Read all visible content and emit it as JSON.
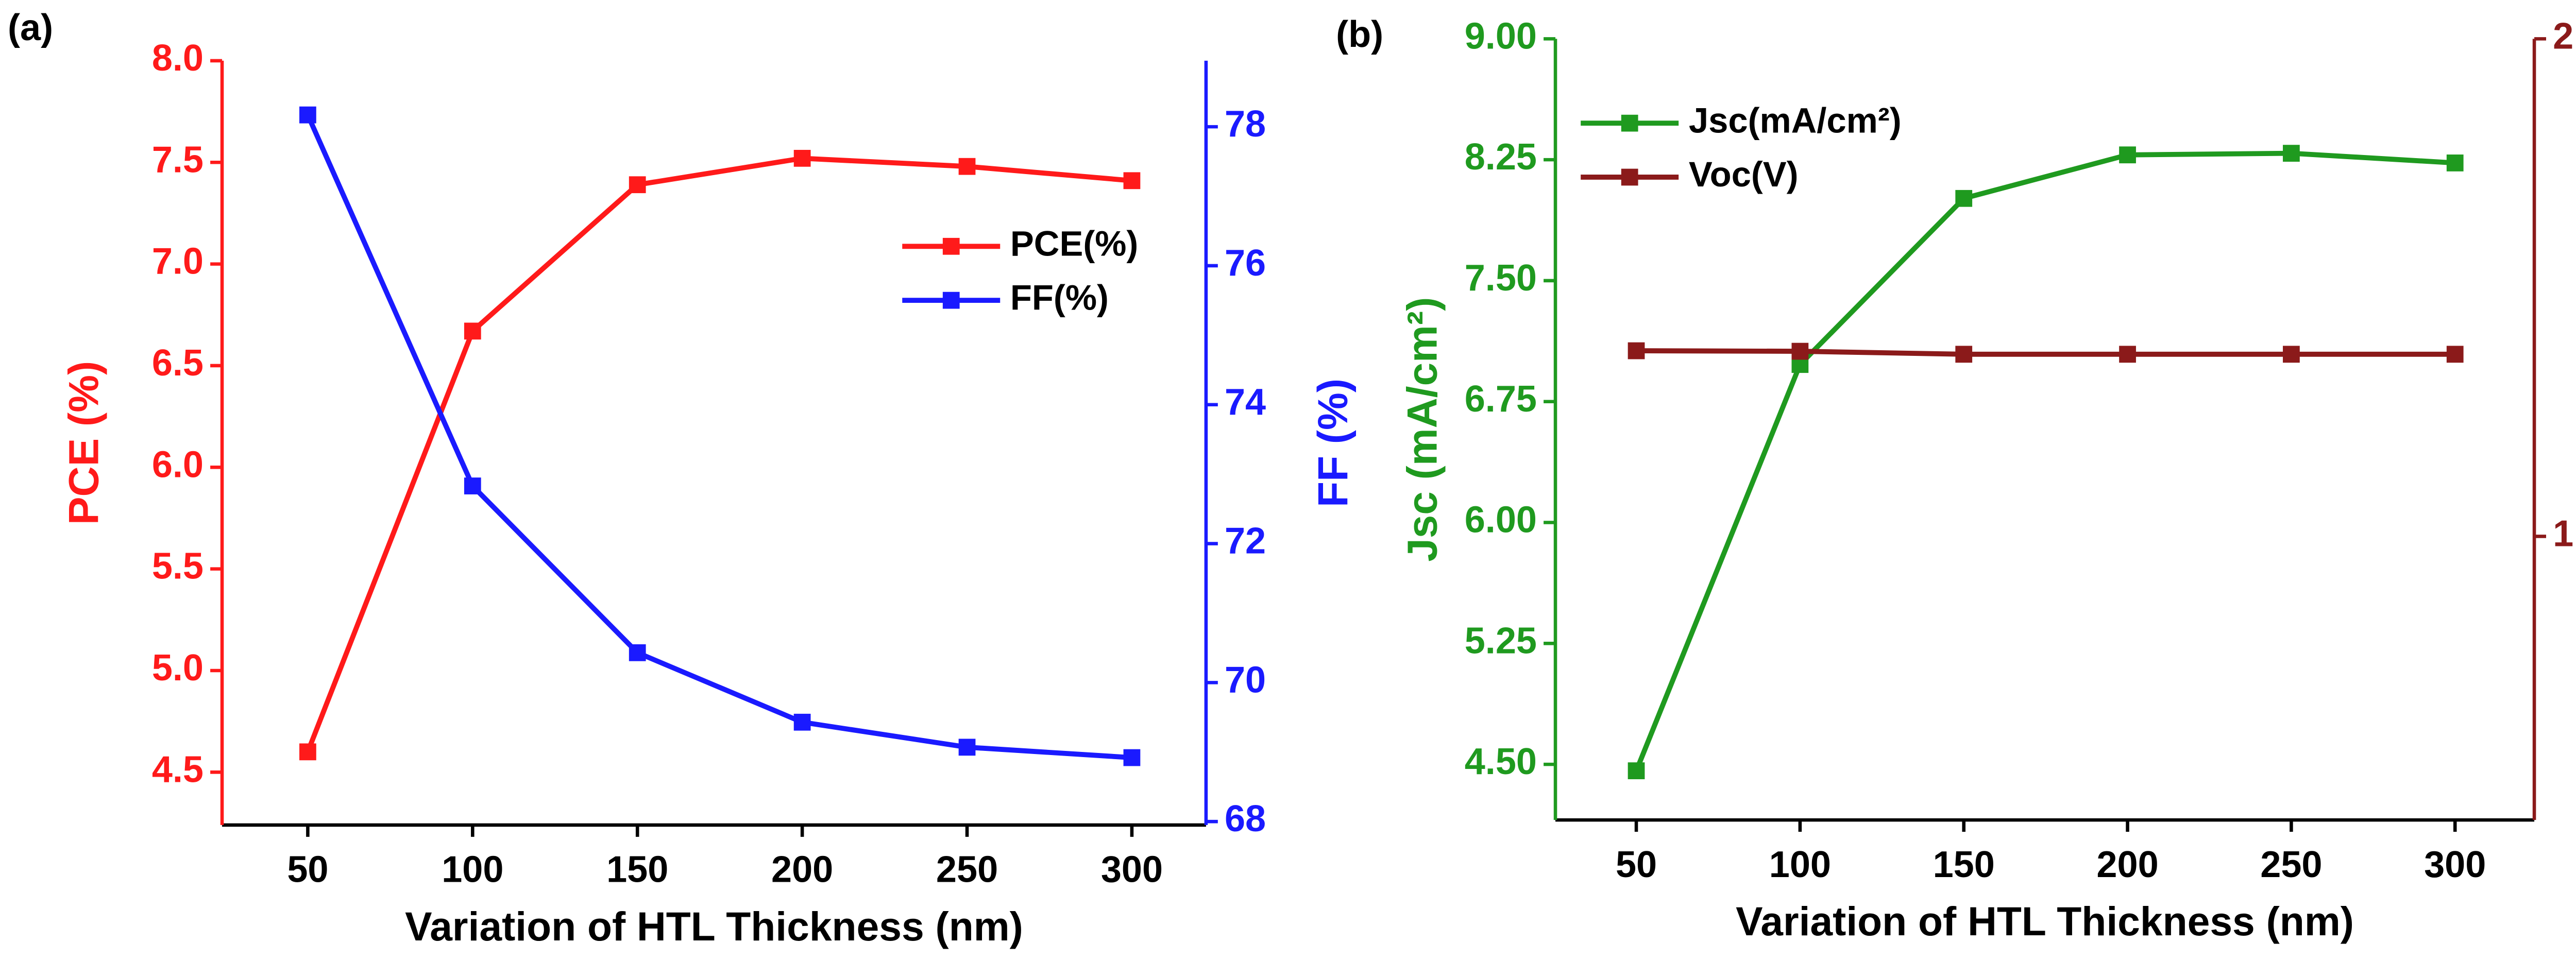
{
  "chart_data": [
    {
      "type": "line",
      "panel_label": "(a)",
      "x_label": "Variation of HTL Thickness (nm)",
      "y_label": "PCE (%)",
      "y2_label": "FF (%)",
      "x": [
        50,
        100,
        150,
        200,
        250,
        300
      ],
      "xlim": [
        24,
        322.5
      ],
      "xticks": [
        50,
        100,
        150,
        200,
        250,
        300
      ],
      "ylim": [
        4.24,
        8.0
      ],
      "yticks": [
        4.5,
        {
          "value": 5,
          "label": "5.0"
        },
        5.5,
        {
          "value": 6,
          "label": "6.0"
        },
        6.5,
        {
          "value": 7,
          "label": "7.0"
        },
        7.5,
        {
          "value": 8,
          "label": "8.0"
        }
      ],
      "y2lim": [
        67.95,
        78.95
      ],
      "y2ticks": [
        68,
        70,
        72,
        74,
        76,
        78
      ],
      "legend": "center right",
      "series": [
        {
          "name": "PCE(%)",
          "color": "#ff1a1a",
          "values": [
            4.6,
            6.67,
            7.39,
            7.52,
            7.48,
            7.41
          ]
        },
        {
          "name": "FF(%)",
          "color": "#1a1aff",
          "axis": "y2",
          "values": [
            78.17,
            72.83,
            70.43,
            69.43,
            69.07,
            68.92
          ]
        }
      ]
    },
    {
      "type": "line",
      "panel_label": "(b)",
      "x_label": "Variation of HTL Thickness (nm)",
      "y_label": "Jsc (mA/cm²)",
      "y2_label": "Voc (V)",
      "x": [
        50,
        100,
        150,
        200,
        250,
        300
      ],
      "xlim": [
        25.3,
        324.2
      ],
      "xticks": [
        50,
        100,
        150,
        200,
        250,
        300
      ],
      "ylim": [
        4.155,
        9.0
      ],
      "yticks": [
        {
          "value": 4.5,
          "label": "4.50"
        },
        {
          "value": 5.25,
          "label": "5.25"
        },
        {
          "value": 6,
          "label": "6.00"
        },
        {
          "value": 6.75,
          "label": "6.75"
        },
        {
          "value": 7.5,
          "label": "7.50"
        },
        {
          "value": 8.25,
          "label": "8.25"
        },
        {
          "value": 9,
          "label": "9.00"
        }
      ],
      "y2lim": [
        0.43,
        2.0
      ],
      "y2ticks": [
        1,
        2
      ],
      "legend": "upper left",
      "series": [
        {
          "name": "Jsc(mA/cm²)",
          "color": "#1f9a1f",
          "values": [
            4.46,
            6.98,
            8.01,
            8.28,
            8.29,
            8.23
          ]
        },
        {
          "name": "Voc(V)",
          "color": "#8b1a1a",
          "axis": "y2",
          "values": [
            1.373,
            1.372,
            1.366,
            1.366,
            1.366,
            1.366
          ]
        }
      ]
    }
  ]
}
